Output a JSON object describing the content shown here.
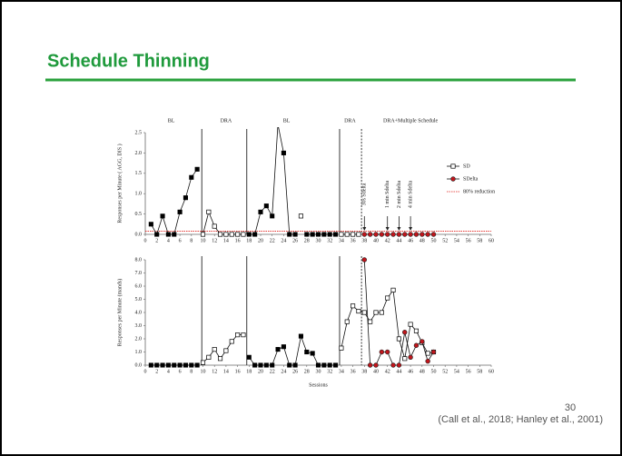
{
  "slide": {
    "title": "Schedule Thinning",
    "page_number": "30",
    "citation": "(Call et al., 2018; Hanley et al., 2001)"
  },
  "chart_data": [
    {
      "type": "line",
      "ylabel": "Responses per Minute ( AGG, DIS )",
      "x": [
        1,
        2,
        3,
        4,
        5,
        6,
        7,
        8,
        9,
        10,
        11,
        12,
        13,
        14,
        15,
        16,
        17,
        18,
        19,
        20,
        21,
        22,
        23,
        24,
        25,
        26,
        27,
        28,
        29,
        30,
        31,
        32,
        33,
        34,
        35,
        36,
        37,
        38,
        39,
        40,
        41,
        42,
        43,
        44,
        45,
        46,
        47,
        48,
        49,
        50
      ],
      "xlim": [
        0,
        60
      ],
      "xticks": [
        0,
        2,
        4,
        6,
        8,
        10,
        12,
        14,
        16,
        18,
        20,
        22,
        24,
        26,
        28,
        30,
        32,
        34,
        36,
        38,
        40,
        42,
        44,
        46,
        48,
        50,
        52,
        54,
        56,
        58,
        60
      ],
      "ylim": [
        0,
        2.5
      ],
      "yticks": [
        {
          "value": 0,
          "label": "0.0"
        },
        {
          "value": 0.5,
          "label": "0.5"
        },
        {
          "value": 1,
          "label": "1.0"
        },
        {
          "value": 1.5,
          "label": "1.5"
        },
        {
          "value": 2,
          "label": "2.0"
        },
        {
          "value": 2.5,
          "label": "2.5"
        }
      ],
      "legend": "upper right",
      "phase_lines": [
        {
          "x": 9.8,
          "style": "solid"
        },
        {
          "x": 17.6,
          "style": "solid"
        },
        {
          "x": 33.7,
          "style": "solid"
        },
        {
          "x": 37.5,
          "style": "dashed"
        }
      ],
      "phase_labels": [
        {
          "text": "BL",
          "x": 4.5
        },
        {
          "text": "DRA",
          "x": 14
        },
        {
          "text": "BL",
          "x": 24.5
        },
        {
          "text": "DRA",
          "x": 35.5
        },
        {
          "text": "DRA+Multiple Schedule",
          "x": 46
        }
      ],
      "annotations": [
        {
          "text": "30s Sdelta",
          "x": 38
        },
        {
          "text": "1 min Sdelta",
          "x": 42
        },
        {
          "text": "2 min Sdelta",
          "x": 44
        },
        {
          "text": "4 min Sdelta",
          "x": 46
        }
      ],
      "reference_line": {
        "name": "80% reduction",
        "value": 0.08,
        "color": "#e0201b"
      },
      "series": [
        {
          "marker": "square",
          "color": "#000000",
          "values": [
            0.25,
            0,
            0.45,
            0,
            0,
            0.55,
            0.9,
            1.4,
            1.6,
            null,
            null,
            null,
            null,
            null,
            null,
            null,
            null,
            0,
            0,
            0.55,
            0.7,
            0.45,
            2.7,
            2.0,
            0,
            0,
            null,
            0,
            0,
            0,
            0,
            0,
            0,
            null,
            null,
            null,
            null,
            null,
            null,
            null,
            null,
            null,
            null,
            null,
            null,
            null,
            null,
            null,
            null,
            null
          ]
        },
        {
          "name": "SD",
          "marker": "square",
          "color": "#ffffff",
          "values": [
            null,
            null,
            null,
            null,
            null,
            null,
            null,
            null,
            null,
            0,
            0.55,
            0.2,
            0,
            0,
            0,
            0,
            0,
            null,
            null,
            null,
            null,
            null,
            null,
            null,
            null,
            null,
            0.45,
            null,
            null,
            null,
            null,
            null,
            null,
            0,
            0,
            0,
            0,
            null,
            null,
            null,
            null,
            null,
            null,
            null,
            null,
            null,
            null,
            null,
            null,
            null
          ]
        },
        {
          "name": "SDelta",
          "marker": "circle",
          "color": "#c0161c",
          "values": [
            null,
            null,
            null,
            null,
            null,
            null,
            null,
            null,
            null,
            null,
            null,
            null,
            null,
            null,
            null,
            null,
            null,
            null,
            null,
            null,
            null,
            null,
            null,
            null,
            null,
            null,
            null,
            null,
            null,
            null,
            null,
            null,
            null,
            null,
            null,
            null,
            null,
            0,
            0,
            0,
            0,
            0,
            0,
            0,
            0,
            0,
            0,
            0,
            0,
            0
          ]
        }
      ]
    },
    {
      "type": "line",
      "ylabel": "Responses per Minute (mands)",
      "xlabel": "Sessions",
      "x": [
        1,
        2,
        3,
        4,
        5,
        6,
        7,
        8,
        9,
        10,
        11,
        12,
        13,
        14,
        15,
        16,
        17,
        18,
        19,
        20,
        21,
        22,
        23,
        24,
        25,
        26,
        27,
        28,
        29,
        30,
        31,
        32,
        33,
        34,
        35,
        36,
        37,
        38,
        39,
        40,
        41,
        42,
        43,
        44,
        45,
        46,
        47,
        48,
        49,
        50
      ],
      "xlim": [
        0,
        60
      ],
      "xticks": [
        0,
        2,
        4,
        6,
        8,
        10,
        12,
        14,
        16,
        18,
        20,
        22,
        24,
        26,
        28,
        30,
        32,
        34,
        36,
        38,
        40,
        42,
        44,
        46,
        48,
        50,
        52,
        54,
        56,
        58,
        60
      ],
      "ylim": [
        0,
        8
      ],
      "yticks": [
        {
          "value": 0,
          "label": "0.0"
        },
        {
          "value": 1,
          "label": "1.0"
        },
        {
          "value": 2,
          "label": "2.0"
        },
        {
          "value": 3,
          "label": "3.0"
        },
        {
          "value": 4,
          "label": "4.0"
        },
        {
          "value": 5,
          "label": "5.0"
        },
        {
          "value": 6,
          "label": "6.0"
        },
        {
          "value": 7,
          "label": "7.0"
        },
        {
          "value": 8,
          "label": "8.0"
        }
      ],
      "phase_lines": [
        {
          "x": 9.8,
          "style": "solid"
        },
        {
          "x": 17.6,
          "style": "solid"
        },
        {
          "x": 33.7,
          "style": "solid"
        },
        {
          "x": 37.5,
          "style": "dashed"
        }
      ],
      "series": [
        {
          "marker": "square",
          "color": "#000000",
          "values": [
            0,
            0,
            0,
            0,
            0,
            0,
            0,
            0,
            0,
            null,
            null,
            null,
            null,
            null,
            null,
            null,
            null,
            0.6,
            0,
            0,
            0,
            0,
            1.2,
            1.4,
            0,
            0,
            2.2,
            1.0,
            0.9,
            0,
            0,
            0,
            0,
            null,
            null,
            null,
            null,
            null,
            null,
            null,
            null,
            null,
            null,
            null,
            null,
            null,
            null,
            null,
            null,
            null
          ]
        },
        {
          "marker": "square",
          "color": "#ffffff",
          "values": [
            null,
            null,
            null,
            null,
            null,
            null,
            null,
            null,
            null,
            0.2,
            0.6,
            1.2,
            0.5,
            1.1,
            1.8,
            2.3,
            2.3,
            null,
            null,
            null,
            null,
            null,
            null,
            null,
            null,
            null,
            null,
            null,
            null,
            null,
            null,
            null,
            null,
            1.3,
            3.3,
            4.5,
            4.1,
            4.0,
            3.3,
            4.0,
            4.0,
            5.1,
            5.7,
            2.0,
            0.5,
            3.1,
            2.6,
            1.7,
            0.9,
            1.0
          ]
        },
        {
          "marker": "circle",
          "color": "#c0161c",
          "values": [
            null,
            null,
            null,
            null,
            null,
            null,
            null,
            null,
            null,
            null,
            null,
            null,
            null,
            null,
            null,
            null,
            null,
            null,
            null,
            null,
            null,
            null,
            null,
            null,
            null,
            null,
            null,
            null,
            null,
            null,
            null,
            null,
            null,
            null,
            null,
            null,
            null,
            8.0,
            0,
            0,
            1.0,
            1.0,
            0,
            0,
            2.5,
            0.6,
            1.5,
            1.8,
            0.3,
            1.0
          ]
        }
      ]
    }
  ]
}
